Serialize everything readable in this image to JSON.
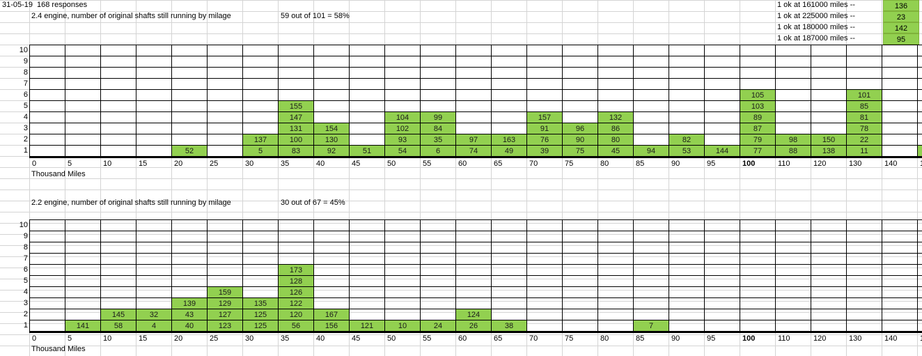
{
  "header": {
    "date": "31-05-19",
    "responses": "168 responses"
  },
  "side_notes": [
    {
      "text": "1 ok at 161000 miles --",
      "value": "136"
    },
    {
      "text": "1 ok at 225000 miles --",
      "value": "23"
    },
    {
      "text": "1 ok at 180000 miles --",
      "value": "142"
    },
    {
      "text": "1 ok at 187000 miles --",
      "value": "95"
    }
  ],
  "row_labels": [
    "10",
    "9",
    "8",
    "7",
    "6",
    "5",
    "4",
    "3",
    "2",
    "1"
  ],
  "x_labels": [
    "0",
    "5",
    "10",
    "15",
    "20",
    "25",
    "30",
    "35",
    "40",
    "45",
    "50",
    "55",
    "60",
    "65",
    "70",
    "75",
    "80",
    "85",
    "90",
    "95",
    "100",
    "110",
    "120",
    "130",
    "140",
    "1"
  ],
  "bold_x_label_index": 20,
  "axis_title": "Thousand Miles",
  "colors": {
    "fill": "#92d050",
    "grid": "#000000"
  },
  "chart_data": [
    {
      "type": "table",
      "title": "2.4 engine, number of original shafts still running by milage",
      "summary": "59 out of 101 = 58%",
      "columns": [
        [],
        [],
        [],
        [],
        [
          "52"
        ],
        [],
        [
          "5",
          "137"
        ],
        [
          "83",
          "100",
          "131",
          "147",
          "155"
        ],
        [
          "92",
          "130",
          "154"
        ],
        [
          "51"
        ],
        [
          "54",
          "93",
          "102",
          "104"
        ],
        [
          "6",
          "35",
          "84",
          "99"
        ],
        [
          "74",
          "97"
        ],
        [
          "49",
          "163"
        ],
        [
          "39",
          "76",
          "91",
          "157"
        ],
        [
          "75",
          "90",
          "96"
        ],
        [
          "45",
          "80",
          "86",
          "132"
        ],
        [
          "94"
        ],
        [
          "53",
          "82"
        ],
        [
          "144"
        ],
        [
          "77",
          "79",
          "87",
          "89",
          "103",
          "105"
        ],
        [
          "88",
          "98"
        ],
        [
          "138",
          "150"
        ],
        [
          "11",
          "22",
          "78",
          "81",
          "85",
          "101"
        ],
        [],
        [
          ""
        ]
      ]
    },
    {
      "type": "table",
      "title": "2.2 engine, number of original shafts still running by milage",
      "summary": "30 out of 67 = 45%",
      "columns": [
        [],
        [
          "141"
        ],
        [
          "58",
          "145"
        ],
        [
          "4",
          "32"
        ],
        [
          "40",
          "43",
          "139"
        ],
        [
          "123",
          "127",
          "129",
          "159"
        ],
        [
          "125",
          "125",
          "135"
        ],
        [
          "56",
          "120",
          "122",
          "126",
          "128",
          "173"
        ],
        [
          "156",
          "167"
        ],
        [
          "121"
        ],
        [
          "10"
        ],
        [
          "24"
        ],
        [
          "26",
          "124"
        ],
        [
          "38"
        ],
        [],
        [],
        [],
        [
          "7"
        ],
        [],
        [],
        [],
        [],
        [],
        [],
        [],
        []
      ]
    }
  ]
}
